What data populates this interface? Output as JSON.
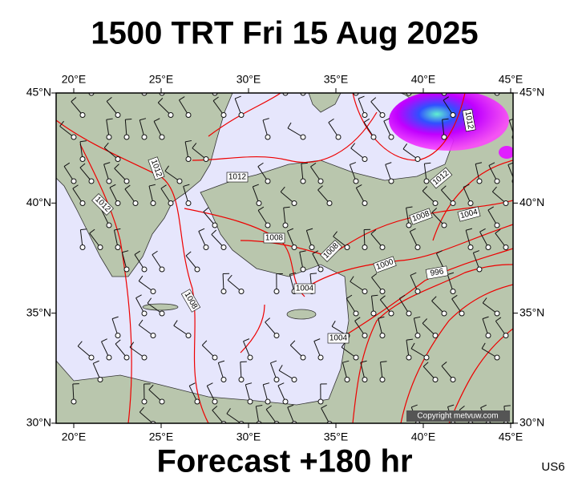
{
  "title": "1500 TRT Fri 15 Aug 2025",
  "footer": "Forecast +180 hr",
  "code": "US6",
  "copyright": "Copyright metvuw.com",
  "lon_labels": [
    "20°E",
    "25°E",
    "30°E",
    "35°E",
    "40°E",
    "45°E"
  ],
  "lat_labels": [
    "45°N",
    "40°N",
    "35°N",
    "30°N"
  ],
  "isobar_labels": [
    "1012",
    "1012",
    "1012",
    "1012",
    "1012",
    "1008",
    "1008",
    "1008",
    "1008",
    "1004",
    "1004",
    "1004",
    "1000",
    "996"
  ]
}
